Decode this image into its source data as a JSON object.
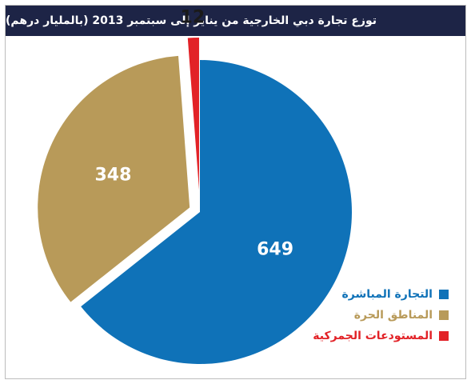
{
  "title": "توزع تجارة دبي الخارجية من يناير إلى سبتمبر 2013 (بالمليار درهم)",
  "chart_data": {
    "type": "pie",
    "title": "توزع تجارة دبي الخارجية من يناير إلى سبتمبر 2013 (بالمليار درهم)",
    "categories": [
      "التجارة المباشرة",
      "المناطق الحرة",
      "المستودعات الجمركية"
    ],
    "values": [
      649,
      348,
      12
    ],
    "colors": [
      "#0f72b8",
      "#b89a59",
      "#e22227"
    ],
    "data_labels": [
      "649",
      "348",
      "12"
    ],
    "legend_position": "bottom-right"
  }
}
